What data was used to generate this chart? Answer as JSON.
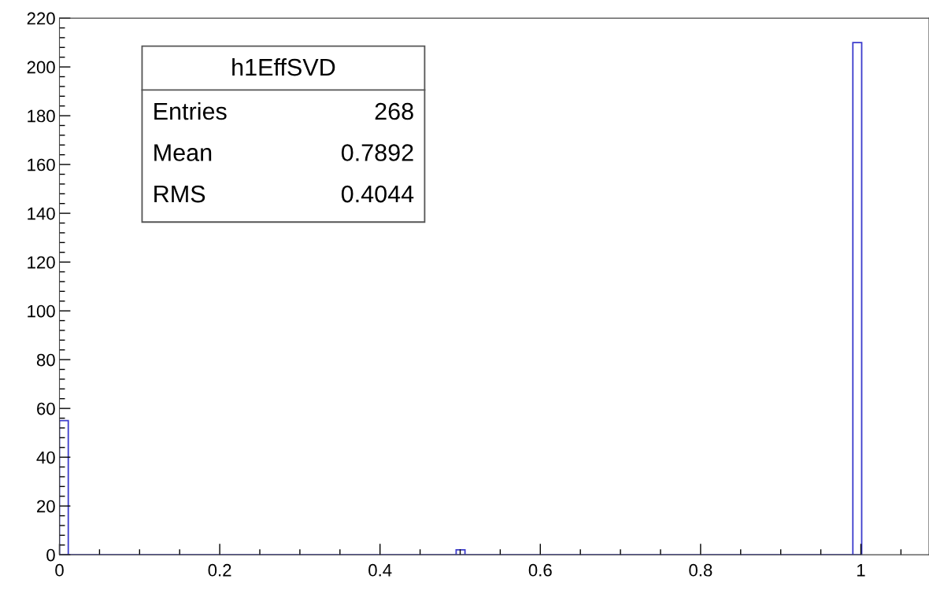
{
  "chart_data": {
    "type": "histogram",
    "bins": [
      0,
      0.011,
      0.495,
      0.506,
      0.99,
      1.001
    ],
    "values": [
      55,
      0,
      2,
      0,
      210
    ],
    "color": "#3c3ccc",
    "xlim": [
      0,
      1.085
    ],
    "xticks": [
      {
        "value": 0,
        "label": "0"
      },
      0.2,
      0.4,
      0.6,
      0.8,
      {
        "value": 1,
        "label": "1"
      }
    ],
    "ylim": [
      0,
      220
    ],
    "yticks": [
      0,
      20,
      40,
      60,
      80,
      100,
      120,
      140,
      160,
      180,
      200,
      220
    ],
    "grid": false,
    "annotations": [
      "h1EffSVD",
      "Entries",
      "268",
      "Mean",
      "0.7892",
      "RMS",
      "0.4044"
    ]
  }
}
